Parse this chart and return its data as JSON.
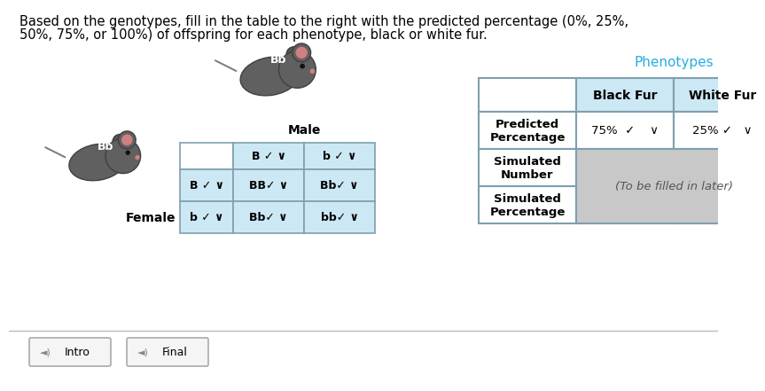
{
  "title_line1": "Based on the genotypes, fill in the table to the right with the predicted percentage (0%, 25%,",
  "title_line2": "50%, 75%, or 100%) of offspring for each phenotype, black or white fur.",
  "title_fontsize": 10.5,
  "bg_color": "#ffffff",
  "phenotypes_label": "Phenotypes",
  "phenotypes_color": "#29abe2",
  "table_headers": [
    "Black Fur",
    "White Fur"
  ],
  "table_rows": [
    "Predicted\nPercentage",
    "Simulated\nNumber",
    "Simulated\nPercentage"
  ],
  "predicted_black": "75%  ✓    ∨",
  "predicted_white": "25% ✓   ∨",
  "simulated_note": "(To be filled in later)",
  "header_bg": "#cce8f4",
  "data_cell_bg": "#ffffff",
  "gray_cell_bg": "#c8c8c8",
  "punnett_header_bg": "#cce8f4",
  "punnett_cell_bg": "#cce8f4",
  "male_label": "Male",
  "female_label": "Female",
  "male_genotype": "Bb",
  "female_genotype": "Bb",
  "punnett_col_labels": [
    "B ✓ ∨",
    "b ✓ ∨"
  ],
  "punnett_row_labels": [
    "B ✓ ∨",
    "b ✓ ∨"
  ],
  "punnett_cells": [
    [
      "BB✓ ∨",
      "Bb✓ ∨"
    ],
    [
      "Bb✓ ∨",
      "bb✓ ∨"
    ]
  ],
  "button_intro": "Intro",
  "button_final": "Final",
  "border_color": "#7f9faf",
  "table_border_color": "#7f9faf",
  "punnett_border_color": "#7f9faf"
}
